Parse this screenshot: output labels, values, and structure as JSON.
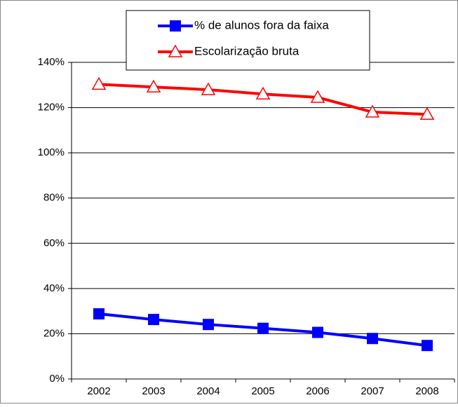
{
  "chart_data": {
    "type": "line",
    "categories": [
      "2002",
      "2003",
      "2004",
      "2005",
      "2006",
      "2007",
      "2008"
    ],
    "series": [
      {
        "name": "% de alunos fora da faixa",
        "color": "#0000ff",
        "marker": "square",
        "values": [
          28.8,
          26.3,
          24.1,
          22.4,
          20.6,
          17.9,
          14.8
        ]
      },
      {
        "name": "Escolarização bruta",
        "color": "#ff0000",
        "marker": "triangle",
        "values": [
          130.3,
          129.1,
          127.9,
          126,
          124.5,
          118,
          117
        ]
      }
    ],
    "ylim": [
      0,
      140
    ],
    "yticks": [
      {
        "value": 0,
        "label": "0%"
      },
      {
        "value": 20,
        "label": "20%"
      },
      {
        "value": 40,
        "label": "40%"
      },
      {
        "value": 60,
        "label": "60%"
      },
      {
        "value": 80,
        "label": "80%"
      },
      {
        "value": 100,
        "label": "100%"
      },
      {
        "value": 120,
        "label": "120%"
      },
      {
        "value": 140,
        "label": "140%"
      }
    ],
    "grid": true,
    "legend": "top"
  }
}
